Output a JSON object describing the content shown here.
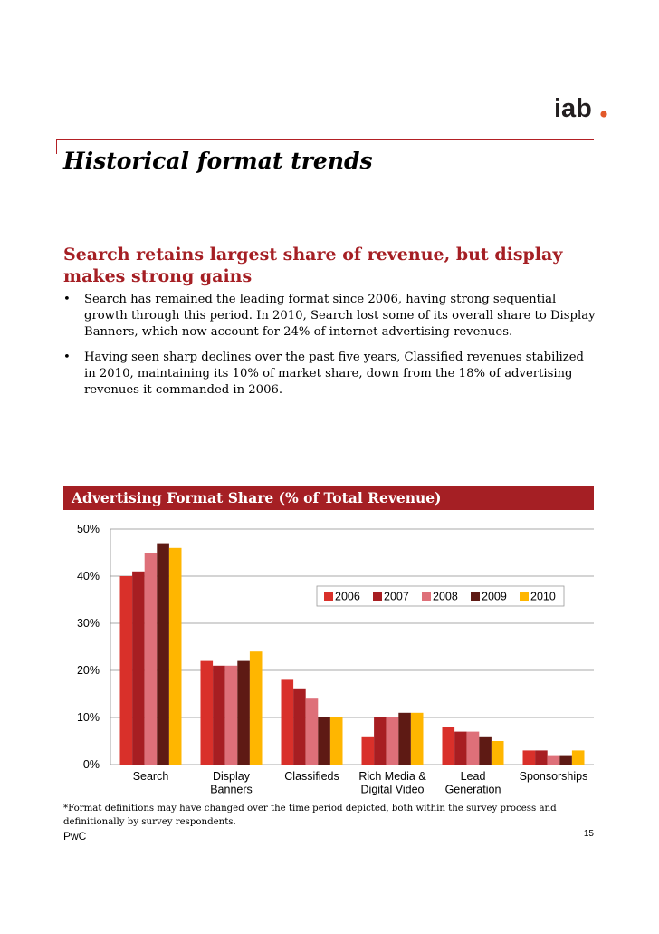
{
  "brand": {
    "logo_text": "iab",
    "logo_dot_color": "#e2592a"
  },
  "page": {
    "title": "Historical format trends",
    "footer_brand": "PwC",
    "page_number": "15"
  },
  "section": {
    "heading": "Search retains largest share of revenue, but display makes strong gains",
    "bullets": [
      {
        "marker": "•",
        "text": "Search has remained the leading format since 2006, having strong sequential growth through this period.  In 2010, Search lost some of its overall share to Display Banners, which now account for 24% of internet advertising revenues."
      },
      {
        "marker": "•",
        "text": "Having seen sharp declines over the past five years, Classified revenues stabilized in 2010, maintaining its 10% of market share, down from the 18% of advertising revenues it commanded in 2006."
      }
    ]
  },
  "chart_title": "Advertising Format Share (% of Total Revenue)",
  "footnote": "*Format definitions may have changed over the time period depicted, both within the survey process and definitionally by survey respondents.",
  "colors": {
    "accent": "#a51f24",
    "title_bar": "#a51f24"
  },
  "chart_data": {
    "type": "bar",
    "title": "Advertising Format Share (% of Total Revenue)",
    "categories": [
      [
        "Search"
      ],
      [
        "Display",
        "Banners"
      ],
      [
        "Classifieds"
      ],
      [
        "Rich Media &",
        "Digital Video"
      ],
      [
        "Lead",
        "Generation"
      ],
      [
        "Sponsorships"
      ]
    ],
    "category_names": [
      "Search",
      "Display Banners",
      "Classifieds",
      "Rich Media & Digital Video",
      "Lead Generation",
      "Sponsorships"
    ],
    "series": [
      {
        "name": "2006",
        "color": "#d9302a",
        "values": [
          40,
          22,
          18,
          6,
          8,
          3
        ]
      },
      {
        "name": "2007",
        "color": "#a71e22",
        "values": [
          41,
          21,
          16,
          10,
          7,
          3
        ]
      },
      {
        "name": "2008",
        "color": "#de7079",
        "values": [
          45,
          21,
          14,
          10,
          7,
          2
        ]
      },
      {
        "name": "2009",
        "color": "#5e1a14",
        "values": [
          47,
          22,
          10,
          11,
          6,
          2
        ]
      },
      {
        "name": "2010",
        "color": "#ffb600",
        "values": [
          46,
          24,
          10,
          11,
          5,
          3
        ]
      }
    ],
    "yticks": [
      "0%",
      "10%",
      "20%",
      "30%",
      "40%",
      "50%"
    ],
    "ylim": [
      0,
      50
    ],
    "grid": true,
    "legend_position": "top-right"
  }
}
